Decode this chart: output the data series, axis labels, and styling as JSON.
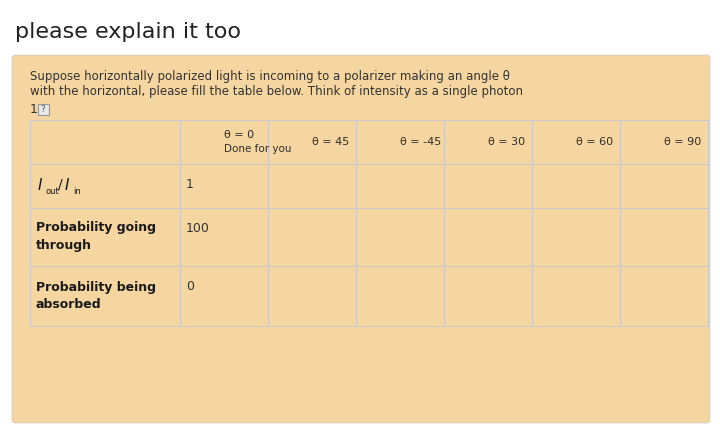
{
  "title": "please explain it too",
  "description_line1": "Suppose horizontally polarized light is incoming to a polarizer making an angle θ",
  "description_line2": "with the horizontal, please fill the table below. Think of intensity as a single photon",
  "bg_color": "#f5d5a0",
  "outer_bg": "#ffffff",
  "title_color": "#222222",
  "desc_color": "#333333",
  "table_border_color": "#c8c8c8",
  "col_headers": [
    "θ = 0\nDone for you",
    "θ = 45",
    "θ = -45",
    "θ = 30",
    "θ = 60",
    "θ = 90"
  ],
  "row0_col0_value": "1",
  "row1_col0_value": "100",
  "row2_col0_value": "0",
  "row_label_color": "#1a1a1a",
  "cell_value_color": "#333333",
  "table_header_color": "#2d2d2d"
}
